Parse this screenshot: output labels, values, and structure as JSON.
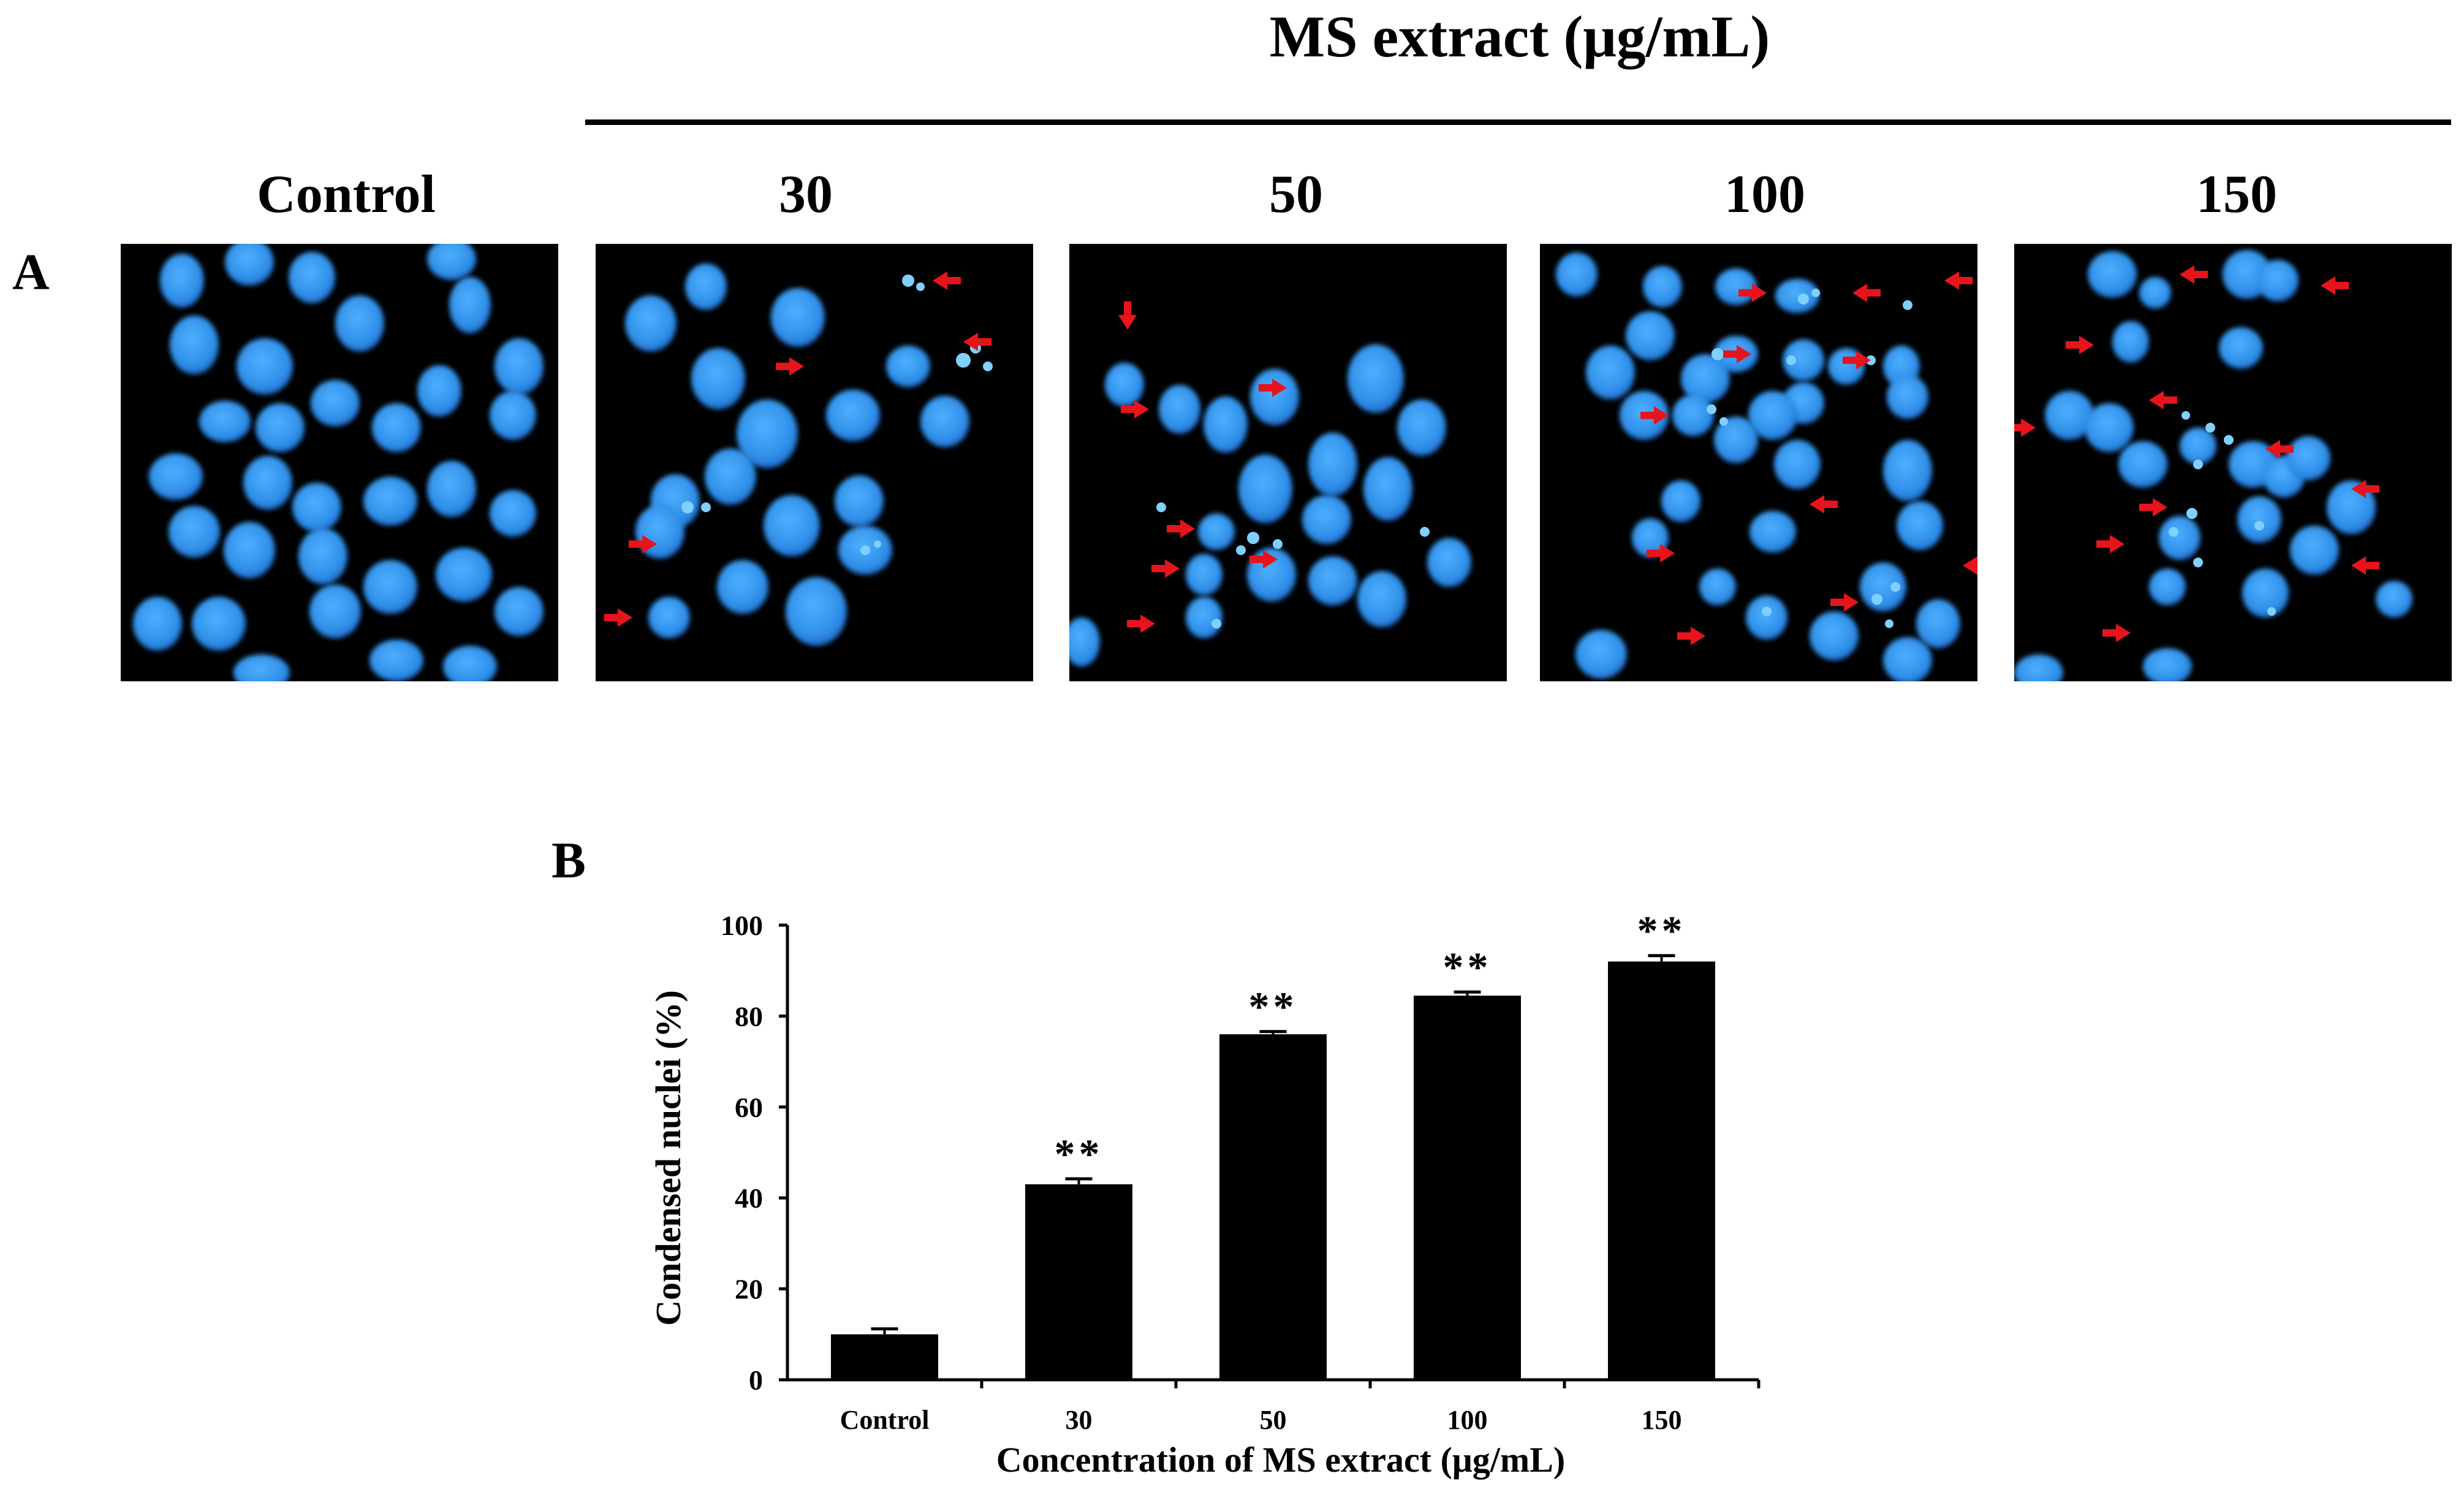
{
  "panelA": {
    "letter": "A",
    "header": "MS extract (μg/mL)",
    "columns": [
      {
        "label": "Control"
      },
      {
        "label": "30"
      },
      {
        "label": "50"
      },
      {
        "label": "100"
      },
      {
        "label": "150"
      }
    ]
  },
  "panelB": {
    "letter": "B"
  },
  "chart_data": {
    "type": "bar",
    "categories": [
      "Control",
      "30",
      "50",
      "100",
      "150"
    ],
    "values": [
      10,
      43,
      76,
      84.5,
      92
    ],
    "errors": [
      1.2,
      1.2,
      0.6,
      0.8,
      1.3
    ],
    "significance": [
      "",
      "**",
      "**",
      "**",
      "**"
    ],
    "xlabel": "Concentration of MS extract  (μg/mL)",
    "ylabel": "Condensed nuclei  (%)",
    "ylim": [
      0,
      100
    ],
    "yticks": [
      0,
      20,
      40,
      60,
      80,
      100
    ],
    "bar_color": "#000000",
    "grid": false,
    "legend": "none"
  },
  "colors": {
    "nucleus": "#2f8fe8",
    "nucleus_dark": "#1a5fc0",
    "arrow": "#e8141b",
    "background": "#000000"
  }
}
